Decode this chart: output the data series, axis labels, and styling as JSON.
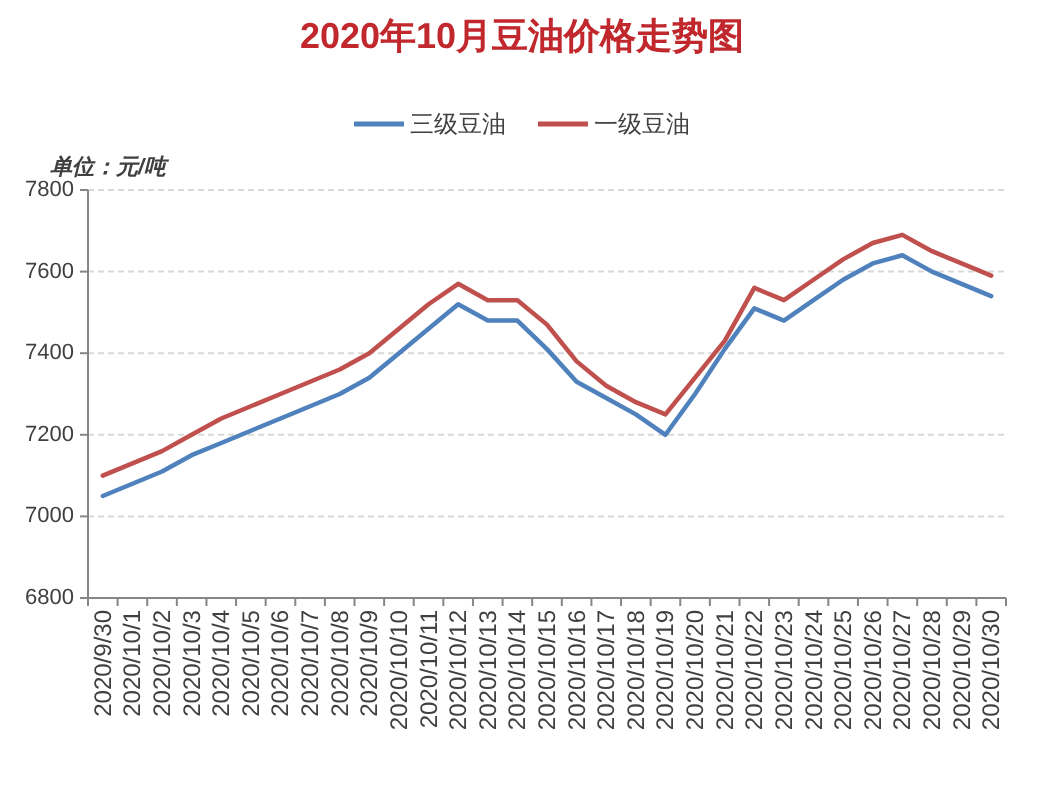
{
  "chart_data": {
    "type": "line",
    "title": "2020年10月豆油价格走势图",
    "ylabel": "单位：元/吨",
    "categories": [
      "2020/9/30",
      "2020/10/1",
      "2020/10/2",
      "2020/10/3",
      "2020/10/4",
      "2020/10/5",
      "2020/10/6",
      "2020/10/7",
      "2020/10/8",
      "2020/10/9",
      "2020/10/10",
      "2020/10/11",
      "2020/10/12",
      "2020/10/13",
      "2020/10/14",
      "2020/10/15",
      "2020/10/16",
      "2020/10/17",
      "2020/10/18",
      "2020/10/19",
      "2020/10/20",
      "2020/10/21",
      "2020/10/22",
      "2020/10/23",
      "2020/10/24",
      "2020/10/25",
      "2020/10/26",
      "2020/10/27",
      "2020/10/28",
      "2020/10/29",
      "2020/10/30"
    ],
    "series": [
      {
        "name": "三级豆油",
        "color": "#4f81bd",
        "values": [
          7050,
          7080,
          7110,
          7150,
          7180,
          7210,
          7240,
          7270,
          7300,
          7340,
          7400,
          7460,
          7520,
          7480,
          7480,
          7410,
          7330,
          7290,
          7250,
          7200,
          7300,
          7410,
          7510,
          7480,
          7530,
          7580,
          7620,
          7640,
          7600,
          7570,
          7540
        ]
      },
      {
        "name": "一级豆油",
        "color": "#c0504d",
        "values": [
          7100,
          7130,
          7160,
          7200,
          7240,
          7270,
          7300,
          7330,
          7360,
          7400,
          7460,
          7520,
          7570,
          7530,
          7530,
          7470,
          7380,
          7320,
          7280,
          7250,
          7340,
          7430,
          7560,
          7530,
          7580,
          7630,
          7670,
          7690,
          7650,
          7620,
          7590
        ]
      }
    ],
    "ylim": [
      6800,
      7800
    ],
    "yticks": [
      6800,
      7000,
      7200,
      7400,
      7600,
      7800
    ],
    "grid": "y",
    "legend": "top",
    "line_style": "solid"
  }
}
